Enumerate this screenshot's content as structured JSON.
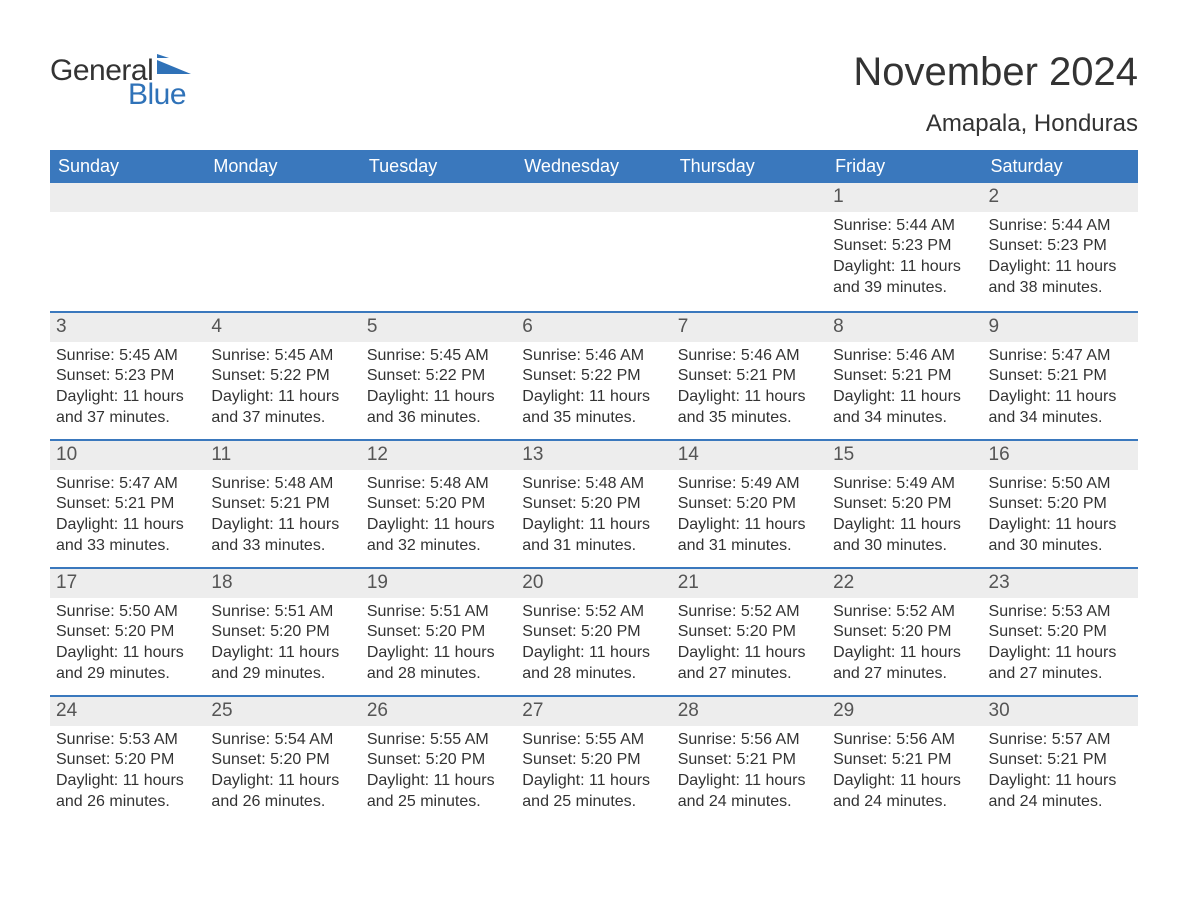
{
  "logo": {
    "word1": "General",
    "word2": "Blue",
    "accent_color": "#2f72b8"
  },
  "title": "November 2024",
  "location": "Amapala, Honduras",
  "colors": {
    "header_bg": "#3a78bd",
    "header_text": "#ffffff",
    "daynum_bg": "#ededed",
    "rule": "#3a78bd",
    "text": "#333333",
    "page_bg": "#ffffff"
  },
  "day_headers": [
    "Sunday",
    "Monday",
    "Tuesday",
    "Wednesday",
    "Thursday",
    "Friday",
    "Saturday"
  ],
  "labels": {
    "sunrise": "Sunrise:",
    "sunset": "Sunset:",
    "daylight": "Daylight:"
  },
  "weeks": [
    [
      null,
      null,
      null,
      null,
      null,
      {
        "n": "1",
        "sunrise": "5:44 AM",
        "sunset": "5:23 PM",
        "daylight": "11 hours and 39 minutes."
      },
      {
        "n": "2",
        "sunrise": "5:44 AM",
        "sunset": "5:23 PM",
        "daylight": "11 hours and 38 minutes."
      }
    ],
    [
      {
        "n": "3",
        "sunrise": "5:45 AM",
        "sunset": "5:23 PM",
        "daylight": "11 hours and 37 minutes."
      },
      {
        "n": "4",
        "sunrise": "5:45 AM",
        "sunset": "5:22 PM",
        "daylight": "11 hours and 37 minutes."
      },
      {
        "n": "5",
        "sunrise": "5:45 AM",
        "sunset": "5:22 PM",
        "daylight": "11 hours and 36 minutes."
      },
      {
        "n": "6",
        "sunrise": "5:46 AM",
        "sunset": "5:22 PM",
        "daylight": "11 hours and 35 minutes."
      },
      {
        "n": "7",
        "sunrise": "5:46 AM",
        "sunset": "5:21 PM",
        "daylight": "11 hours and 35 minutes."
      },
      {
        "n": "8",
        "sunrise": "5:46 AM",
        "sunset": "5:21 PM",
        "daylight": "11 hours and 34 minutes."
      },
      {
        "n": "9",
        "sunrise": "5:47 AM",
        "sunset": "5:21 PM",
        "daylight": "11 hours and 34 minutes."
      }
    ],
    [
      {
        "n": "10",
        "sunrise": "5:47 AM",
        "sunset": "5:21 PM",
        "daylight": "11 hours and 33 minutes."
      },
      {
        "n": "11",
        "sunrise": "5:48 AM",
        "sunset": "5:21 PM",
        "daylight": "11 hours and 33 minutes."
      },
      {
        "n": "12",
        "sunrise": "5:48 AM",
        "sunset": "5:20 PM",
        "daylight": "11 hours and 32 minutes."
      },
      {
        "n": "13",
        "sunrise": "5:48 AM",
        "sunset": "5:20 PM",
        "daylight": "11 hours and 31 minutes."
      },
      {
        "n": "14",
        "sunrise": "5:49 AM",
        "sunset": "5:20 PM",
        "daylight": "11 hours and 31 minutes."
      },
      {
        "n": "15",
        "sunrise": "5:49 AM",
        "sunset": "5:20 PM",
        "daylight": "11 hours and 30 minutes."
      },
      {
        "n": "16",
        "sunrise": "5:50 AM",
        "sunset": "5:20 PM",
        "daylight": "11 hours and 30 minutes."
      }
    ],
    [
      {
        "n": "17",
        "sunrise": "5:50 AM",
        "sunset": "5:20 PM",
        "daylight": "11 hours and 29 minutes."
      },
      {
        "n": "18",
        "sunrise": "5:51 AM",
        "sunset": "5:20 PM",
        "daylight": "11 hours and 29 minutes."
      },
      {
        "n": "19",
        "sunrise": "5:51 AM",
        "sunset": "5:20 PM",
        "daylight": "11 hours and 28 minutes."
      },
      {
        "n": "20",
        "sunrise": "5:52 AM",
        "sunset": "5:20 PM",
        "daylight": "11 hours and 28 minutes."
      },
      {
        "n": "21",
        "sunrise": "5:52 AM",
        "sunset": "5:20 PM",
        "daylight": "11 hours and 27 minutes."
      },
      {
        "n": "22",
        "sunrise": "5:52 AM",
        "sunset": "5:20 PM",
        "daylight": "11 hours and 27 minutes."
      },
      {
        "n": "23",
        "sunrise": "5:53 AM",
        "sunset": "5:20 PM",
        "daylight": "11 hours and 27 minutes."
      }
    ],
    [
      {
        "n": "24",
        "sunrise": "5:53 AM",
        "sunset": "5:20 PM",
        "daylight": "11 hours and 26 minutes."
      },
      {
        "n": "25",
        "sunrise": "5:54 AM",
        "sunset": "5:20 PM",
        "daylight": "11 hours and 26 minutes."
      },
      {
        "n": "26",
        "sunrise": "5:55 AM",
        "sunset": "5:20 PM",
        "daylight": "11 hours and 25 minutes."
      },
      {
        "n": "27",
        "sunrise": "5:55 AM",
        "sunset": "5:20 PM",
        "daylight": "11 hours and 25 minutes."
      },
      {
        "n": "28",
        "sunrise": "5:56 AM",
        "sunset": "5:21 PM",
        "daylight": "11 hours and 24 minutes."
      },
      {
        "n": "29",
        "sunrise": "5:56 AM",
        "sunset": "5:21 PM",
        "daylight": "11 hours and 24 minutes."
      },
      {
        "n": "30",
        "sunrise": "5:57 AM",
        "sunset": "5:21 PM",
        "daylight": "11 hours and 24 minutes."
      }
    ]
  ]
}
